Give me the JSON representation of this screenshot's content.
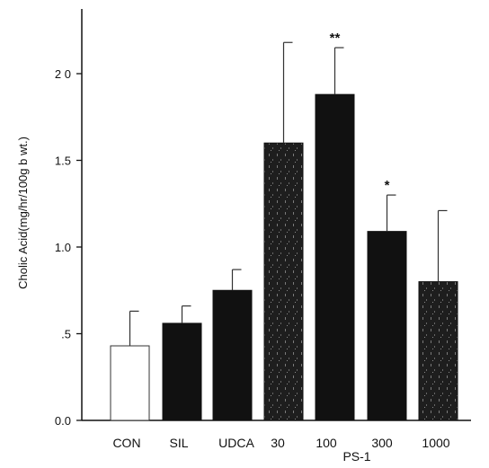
{
  "chart_data": {
    "type": "bar",
    "title": "",
    "ylabel": "Cholic Acid(mg/hr/100g b wt.)",
    "xlabel": "",
    "group_label": "PS-1",
    "group_members": [
      "30",
      "100",
      "300",
      "1000"
    ],
    "ylim": [
      0,
      2.4
    ],
    "yticks": [
      {
        "value": 0.0,
        "label": "0.0"
      },
      {
        "value": 0.5,
        "label": ".5"
      },
      {
        "value": 1.0,
        "label": "1.0"
      },
      {
        "value": 1.5,
        "label": "1.5"
      },
      {
        "value": 2.0,
        "label": "2 0"
      }
    ],
    "categories": [
      "CON",
      "SIL",
      "UDCA",
      "30",
      "100",
      "300",
      "1000"
    ],
    "values": [
      0.43,
      0.56,
      0.75,
      1.6,
      1.88,
      1.09,
      0.8
    ],
    "errors": [
      0.2,
      0.1,
      0.12,
      0.58,
      0.27,
      0.21,
      0.41
    ],
    "significance": [
      "",
      "",
      "",
      "",
      "**",
      "*",
      ""
    ],
    "bar_fills": [
      "white",
      "black",
      "black",
      "dark-textured",
      "black",
      "black",
      "dark-textured"
    ],
    "colors": {
      "black": "#111111",
      "dark": "#1e1e1e",
      "white": "#ffffff",
      "axis": "#111111"
    },
    "grid": false
  }
}
